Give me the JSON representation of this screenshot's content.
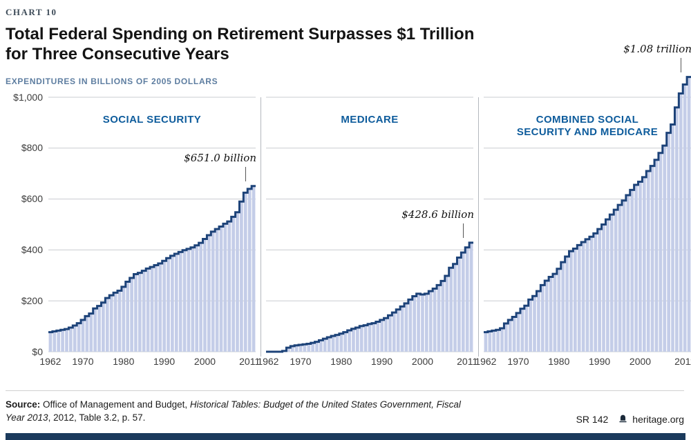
{
  "header": {
    "chart_label": "CHART 10",
    "title_line1": "Total Federal Spending on Retirement Surpasses $1 Trillion",
    "title_line2": "for Three Consecutive Years",
    "subtitle": "EXPENDITURES IN BILLIONS OF 2005 DOLLARS"
  },
  "axes": {
    "y_ticks": [
      {
        "label": "$1,000",
        "value": 1000
      },
      {
        "label": "$800",
        "value": 800
      },
      {
        "label": "$600",
        "value": 600
      },
      {
        "label": "$400",
        "value": 400
      },
      {
        "label": "$200",
        "value": 200
      },
      {
        "label": "$0",
        "value": 0
      }
    ],
    "x_tick_years": [
      1962,
      1970,
      1980,
      1990,
      2000,
      2011
    ]
  },
  "chart_data": {
    "type": "area",
    "subtype": "step-area, three small-multiple panels sharing one y-axis",
    "unit": "billions of 2005 dollars",
    "ylim": [
      0,
      1000
    ],
    "grid": true,
    "x": [
      1962,
      1963,
      1964,
      1965,
      1966,
      1967,
      1968,
      1969,
      1970,
      1971,
      1972,
      1973,
      1974,
      1975,
      1976,
      1977,
      1978,
      1979,
      1980,
      1981,
      1982,
      1983,
      1984,
      1985,
      1986,
      1987,
      1988,
      1989,
      1990,
      1991,
      1992,
      1993,
      1994,
      1995,
      1996,
      1997,
      1998,
      1999,
      2000,
      2001,
      2002,
      2003,
      2004,
      2005,
      2006,
      2007,
      2008,
      2009,
      2010,
      2011,
      2012
    ],
    "panels": [
      {
        "title": "SOCIAL SECURITY",
        "series": "social_security",
        "annotation": "$651.0 billion"
      },
      {
        "title": "MEDICARE",
        "series": "medicare",
        "annotation": "$428.6 billion"
      },
      {
        "title": "COMBINED SOCIAL SECURITY AND MEDICARE",
        "series": "combined",
        "annotation": "$1.08 trillion"
      }
    ],
    "series": {
      "social_security": [
        77,
        80,
        83,
        86,
        89,
        95,
        103,
        112,
        125,
        140,
        150,
        170,
        180,
        193,
        211,
        222,
        232,
        240,
        255,
        275,
        290,
        305,
        310,
        318,
        327,
        333,
        340,
        347,
        357,
        368,
        377,
        385,
        392,
        399,
        404,
        410,
        418,
        428,
        443,
        458,
        472,
        482,
        492,
        503,
        512,
        530,
        548,
        590,
        625,
        640,
        651
      ],
      "medicare": [
        0,
        0,
        0,
        0,
        3,
        16,
        22,
        25,
        27,
        29,
        31,
        35,
        39,
        45,
        51,
        57,
        62,
        66,
        71,
        77,
        84,
        90,
        95,
        101,
        104,
        109,
        112,
        118,
        125,
        132,
        143,
        154,
        166,
        178,
        190,
        205,
        218,
        228,
        225,
        228,
        238,
        248,
        262,
        278,
        298,
        330,
        345,
        370,
        390,
        410,
        428.6
      ],
      "combined": [
        77,
        80,
        83,
        86,
        92,
        111,
        125,
        137,
        152,
        169,
        181,
        205,
        219,
        238,
        262,
        279,
        294,
        306,
        326,
        352,
        374,
        395,
        405,
        419,
        431,
        442,
        452,
        465,
        482,
        500,
        520,
        539,
        558,
        577,
        594,
        615,
        636,
        656,
        668,
        686,
        710,
        730,
        754,
        781,
        810,
        860,
        893,
        960,
        1015,
        1050,
        1079.6
      ]
    }
  },
  "colors": {
    "line": "#1d4379",
    "fill": "#c4cde8",
    "grid": "#c9ccd0",
    "panel_title": "#0e5c9c",
    "navy_bar": "#1b3a5c"
  },
  "footer": {
    "source_bold": "Source:",
    "source_normal1": " Office of Management and Budget, ",
    "source_italic": "Historical Tables: Budget of the United States Government, Fiscal Year 2013",
    "source_normal2": ", 2012, Table 3.2, p. 57.",
    "report_id": "SR 142",
    "site": "heritage.org"
  }
}
